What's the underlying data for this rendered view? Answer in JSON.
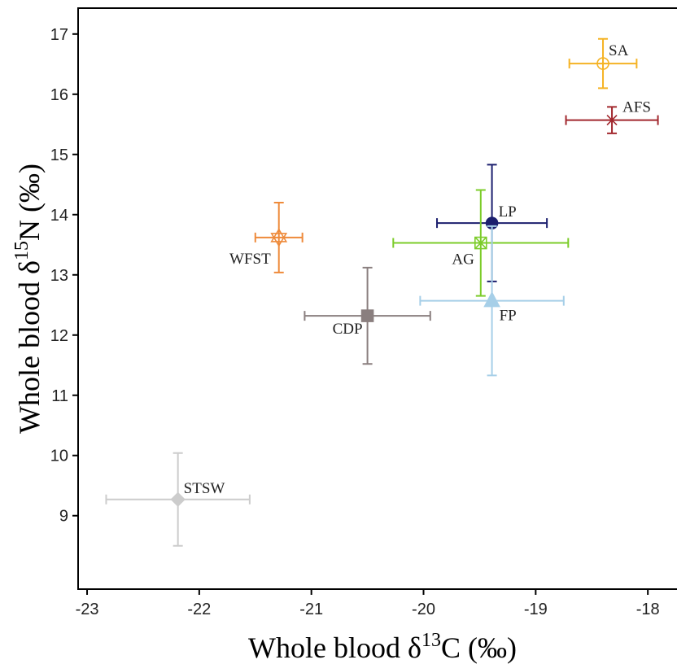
{
  "chart_data": {
    "type": "scatter",
    "x_label": {
      "pre": "Whole blood δ",
      "sup": "13",
      "post": "C (‰)"
    },
    "y_label": {
      "pre": "Whole blood δ",
      "sup": "15",
      "post": "N (‰)"
    },
    "xlim": [
      -23.08,
      -17.74
    ],
    "ylim": [
      7.78,
      17.43
    ],
    "xticks": [
      -23,
      -22,
      -21,
      -20,
      -19,
      -18
    ],
    "yticks": [
      9,
      10,
      11,
      12,
      13,
      14,
      15,
      16,
      17
    ],
    "series": [
      {
        "name": "SA",
        "color": "#f5b324",
        "marker": "circle-plus",
        "x": -18.4,
        "y": 16.51,
        "xerr": 0.3,
        "yerr": 0.41
      },
      {
        "name": "AFS",
        "color": "#a2282e",
        "marker": "asterisk",
        "x": -18.32,
        "y": 15.57,
        "xerr": 0.41,
        "yerr": 0.22
      },
      {
        "name": "LP",
        "color": "#1c1f6e",
        "marker": "circle",
        "x": -19.39,
        "y": 13.86,
        "xerr": 0.49,
        "yerr": 0.97
      },
      {
        "name": "AG",
        "color": "#7ccc2a",
        "marker": "square-x",
        "x": -19.49,
        "y": 13.53,
        "xerr": 0.78,
        "yerr": 0.88
      },
      {
        "name": "FP",
        "color": "#a6cfe8",
        "marker": "triangle",
        "x": -19.39,
        "y": 12.57,
        "xerr": 0.64,
        "yerr": 1.24
      },
      {
        "name": "WFST",
        "color": "#ee8a3a",
        "marker": "star",
        "x": -21.29,
        "y": 13.62,
        "xerr": 0.21,
        "yerr": 0.58
      },
      {
        "name": "CDP",
        "color": "#8a7f7f",
        "marker": "square",
        "x": -20.5,
        "y": 12.32,
        "xerr": 0.56,
        "yerr": 0.8
      },
      {
        "name": "STSW",
        "color": "#cccccc",
        "marker": "diamond",
        "x": -22.19,
        "y": 9.27,
        "xerr": 0.64,
        "yerr": 0.77
      }
    ]
  }
}
